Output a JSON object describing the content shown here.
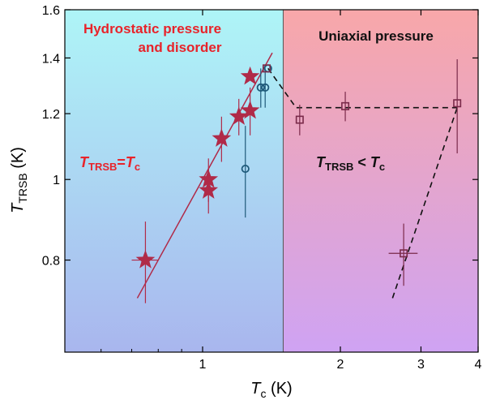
{
  "chart_data": {
    "type": "scatter",
    "x_scale": "log",
    "y_scale": "log",
    "xlim": [
      0.5,
      4
    ],
    "ylim": [
      0.62,
      1.6
    ],
    "xticks": [
      1,
      2,
      3,
      4
    ],
    "xtick_labels": [
      "1",
      "2",
      "3",
      "4"
    ],
    "yticks": [
      0.8,
      1,
      1.2,
      1.4,
      1.6
    ],
    "ytick_labels": [
      "0.8",
      "1",
      "1.2",
      "1.4",
      "1.6"
    ],
    "xlabel_main": "T",
    "xlabel_sub": "c",
    "xlabel_unit": " (K)",
    "ylabel_main": "T",
    "ylabel_sub": "TRSB",
    "ylabel_unit": " (K)",
    "region_boundary_x": 1.5,
    "regions": [
      {
        "title_line1": "Hydrostatic pressure",
        "title_line2": "and disorder",
        "title_color": "#e8232a"
      },
      {
        "title_line1": "Uniaxial pressure",
        "title_line2": "",
        "title_color": "#111111"
      }
    ],
    "annotation_left": {
      "main": "T",
      "sub": "TRSB",
      "middle": "=",
      "main2": "T",
      "sub2": "c",
      "color": "#e8232a"
    },
    "annotation_right": {
      "main": "T",
      "sub": "TRSB",
      "middle": " < ",
      "main2": "T",
      "sub2": "c",
      "color": "#111111"
    },
    "series": [
      {
        "marker": "star",
        "color": "#b02a48",
        "points": [
          {
            "x": 0.75,
            "y": 0.8,
            "xerr": 0.05,
            "yerr": 0.09
          },
          {
            "x": 1.03,
            "y": 1.0,
            "xerr": 0.0,
            "yerr": 0.06
          },
          {
            "x": 1.03,
            "y": 0.97,
            "xerr": 0.0,
            "yerr": 0.06
          },
          {
            "x": 1.1,
            "y": 1.12,
            "xerr": 0.0,
            "yerr": 0.07
          },
          {
            "x": 1.2,
            "y": 1.19,
            "xerr": 0.0,
            "yerr": 0.06
          },
          {
            "x": 1.27,
            "y": 1.21,
            "xerr": 0.0,
            "yerr": 0.08
          },
          {
            "x": 1.27,
            "y": 1.33,
            "xerr": 0.0,
            "yerr": 0.0
          }
        ]
      },
      {
        "marker": "circle",
        "color": "#1f5a7a",
        "points": [
          {
            "x": 1.24,
            "y": 1.03,
            "xerr": 0.0,
            "yerr": 0.13
          },
          {
            "x": 1.34,
            "y": 1.29,
            "xerr": 0.0,
            "yerr": 0.07
          },
          {
            "x": 1.37,
            "y": 1.29,
            "xerr": 0.0,
            "yerr": 0.07
          },
          {
            "x": 1.39,
            "y": 1.36,
            "xerr": 0.0,
            "yerr": 0.0
          }
        ]
      },
      {
        "marker": "square",
        "color": "#7a2a4a",
        "points": [
          {
            "x": 1.38,
            "y": 1.36,
            "xerr": 0.0,
            "yerr": 0.0
          },
          {
            "x": 1.63,
            "y": 1.18,
            "xerr": 0.0,
            "yerr": 0.05
          },
          {
            "x": 2.05,
            "y": 1.225,
            "xerr": 0.0,
            "yerr": 0.05
          },
          {
            "x": 2.75,
            "y": 0.815,
            "xerr": 0.2,
            "yerr": 0.07
          },
          {
            "x": 3.6,
            "y": 1.235,
            "xerr": 0.0,
            "yerr": 0.16
          }
        ]
      }
    ],
    "fit_line": {
      "color": "#b02a48",
      "x": [
        0.72,
        1.42
      ],
      "y": [
        0.72,
        1.42
      ]
    },
    "dashed_lines": [
      {
        "x": [
          1.39,
          1.6,
          3.6
        ],
        "y": [
          1.36,
          1.22,
          1.22
        ]
      },
      {
        "x": [
          2.6,
          3.6
        ],
        "y": [
          0.72,
          1.22
        ]
      }
    ]
  }
}
